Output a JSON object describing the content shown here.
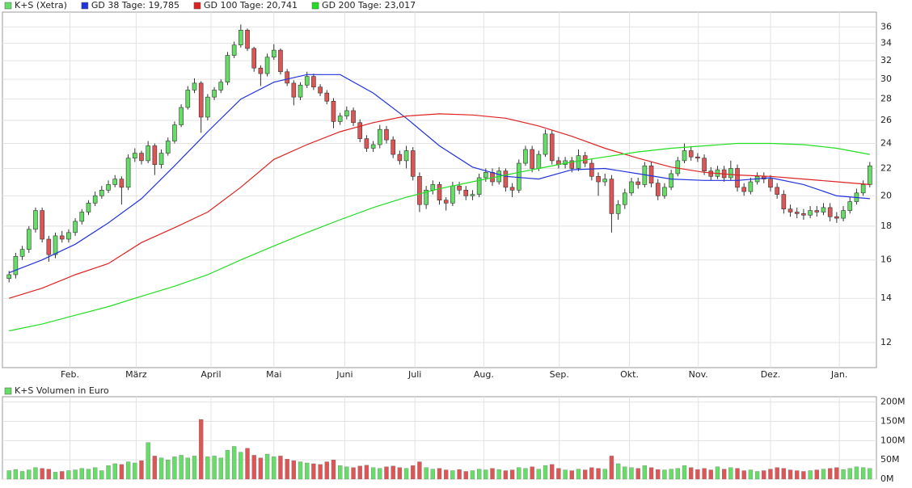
{
  "chart_data": [
    {
      "type": "candlestick",
      "name": "K+S (Xetra)",
      "up_color": "#66dd66",
      "down_color": "#dd5555",
      "log_scale": true,
      "grid": true,
      "xlim": [
        -1,
        131
      ],
      "ylim": [
        11,
        37.9
      ],
      "xticks": [
        {
          "value": 9.2,
          "label": "Feb."
        },
        {
          "value": 19.2,
          "label": "März"
        },
        {
          "value": 30.5,
          "label": "April"
        },
        {
          "value": 40,
          "label": "Mai"
        },
        {
          "value": 50.7,
          "label": "Juni"
        },
        {
          "value": 61.3,
          "label": "Juli"
        },
        {
          "value": 71.7,
          "label": "Aug."
        },
        {
          "value": 83.1,
          "label": "Sep."
        },
        {
          "value": 93.7,
          "label": "Okt."
        },
        {
          "value": 104.1,
          "label": "Nov."
        },
        {
          "value": 115,
          "label": "Dez."
        },
        {
          "value": 125.4,
          "label": "Jan."
        }
      ],
      "yticks": [
        12,
        14,
        16,
        18,
        20,
        22,
        24,
        26,
        28,
        30,
        32,
        34,
        36
      ],
      "ohlc": [
        [
          15.0,
          15.4,
          14.8,
          15.2
        ],
        [
          15.2,
          16.4,
          15.0,
          16.2
        ],
        [
          16.2,
          16.8,
          16.0,
          16.6
        ],
        [
          16.6,
          18.0,
          16.4,
          17.8
        ],
        [
          17.8,
          19.2,
          17.6,
          19.0
        ],
        [
          19.0,
          19.2,
          17.0,
          17.2
        ],
        [
          17.2,
          17.4,
          15.9,
          16.3
        ],
        [
          16.3,
          17.6,
          16.1,
          17.4
        ],
        [
          17.4,
          17.7,
          17.0,
          17.2
        ],
        [
          17.2,
          17.8,
          17.0,
          17.6
        ],
        [
          17.6,
          18.5,
          17.4,
          18.3
        ],
        [
          18.3,
          19.1,
          18.1,
          18.9
        ],
        [
          18.9,
          19.7,
          18.7,
          19.5
        ],
        [
          19.5,
          20.3,
          19.3,
          20.0
        ],
        [
          20.0,
          20.7,
          19.8,
          20.4
        ],
        [
          20.4,
          21.1,
          20.2,
          20.8
        ],
        [
          20.8,
          21.5,
          20.6,
          21.2
        ],
        [
          21.2,
          21.4,
          19.4,
          20.6
        ],
        [
          20.6,
          23.1,
          20.4,
          22.8
        ],
        [
          22.8,
          23.6,
          22.5,
          23.2
        ],
        [
          23.2,
          23.4,
          22.3,
          22.6
        ],
        [
          22.6,
          24.2,
          22.4,
          23.8
        ],
        [
          23.8,
          24.0,
          21.5,
          22.3
        ],
        [
          22.3,
          23.5,
          22.0,
          23.2
        ],
        [
          23.2,
          24.5,
          23.0,
          24.2
        ],
        [
          24.2,
          25.9,
          24.0,
          25.6
        ],
        [
          25.6,
          27.5,
          25.4,
          27.2
        ],
        [
          27.2,
          29.3,
          27.0,
          28.9
        ],
        [
          28.9,
          30.1,
          28.6,
          29.6
        ],
        [
          29.6,
          29.8,
          24.9,
          26.3
        ],
        [
          26.3,
          28.5,
          26.0,
          28.2
        ],
        [
          28.2,
          29.2,
          27.9,
          28.9
        ],
        [
          28.9,
          30.0,
          28.6,
          29.7
        ],
        [
          29.7,
          33.0,
          29.4,
          32.6
        ],
        [
          32.6,
          34.2,
          32.3,
          33.8
        ],
        [
          33.8,
          36.3,
          33.5,
          35.6
        ],
        [
          35.6,
          35.8,
          33.1,
          33.4
        ],
        [
          33.4,
          33.6,
          30.8,
          31.2
        ],
        [
          31.2,
          31.5,
          29.3,
          30.6
        ],
        [
          30.6,
          32.8,
          30.3,
          32.4
        ],
        [
          32.4,
          33.9,
          32.1,
          33.2
        ],
        [
          33.2,
          33.4,
          30.5,
          30.8
        ],
        [
          30.8,
          31.1,
          29.3,
          29.6
        ],
        [
          29.6,
          29.9,
          27.4,
          28.2
        ],
        [
          28.2,
          29.7,
          27.9,
          29.4
        ],
        [
          29.4,
          30.8,
          29.1,
          30.3
        ],
        [
          30.3,
          30.6,
          28.9,
          29.2
        ],
        [
          29.2,
          29.5,
          28.3,
          28.6
        ],
        [
          28.6,
          28.9,
          27.5,
          27.8
        ],
        [
          27.8,
          28.1,
          25.3,
          25.9
        ],
        [
          25.9,
          26.7,
          25.6,
          26.4
        ],
        [
          26.4,
          27.3,
          26.1,
          26.9
        ],
        [
          26.9,
          27.2,
          25.5,
          25.8
        ],
        [
          25.8,
          26.1,
          24.1,
          24.4
        ],
        [
          24.4,
          24.7,
          23.3,
          23.6
        ],
        [
          23.6,
          24.2,
          23.3,
          23.9
        ],
        [
          23.9,
          25.6,
          23.6,
          25.2
        ],
        [
          25.2,
          25.5,
          24.0,
          24.3
        ],
        [
          24.3,
          24.6,
          22.8,
          23.1
        ],
        [
          23.1,
          23.4,
          22.3,
          22.6
        ],
        [
          22.6,
          23.8,
          22.0,
          23.4
        ],
        [
          23.4,
          23.7,
          21.1,
          21.4
        ],
        [
          21.4,
          21.7,
          18.9,
          19.4
        ],
        [
          19.4,
          20.7,
          19.1,
          20.4
        ],
        [
          20.4,
          21.1,
          20.1,
          20.8
        ],
        [
          20.8,
          21.0,
          19.4,
          19.7
        ],
        [
          19.7,
          19.9,
          19.0,
          19.5
        ],
        [
          19.5,
          21.0,
          19.3,
          20.7
        ],
        [
          20.7,
          21.0,
          20.1,
          20.4
        ],
        [
          20.4,
          20.7,
          19.7,
          20.0
        ],
        [
          20.0,
          20.4,
          19.7,
          20.1
        ],
        [
          20.1,
          21.6,
          19.9,
          21.3
        ],
        [
          21.3,
          22.0,
          21.0,
          21.7
        ],
        [
          21.7,
          22.0,
          20.7,
          21.0
        ],
        [
          21.0,
          22.1,
          20.8,
          21.8
        ],
        [
          21.8,
          22.0,
          20.3,
          20.6
        ],
        [
          20.6,
          20.9,
          19.9,
          20.4
        ],
        [
          20.4,
          22.7,
          20.2,
          22.4
        ],
        [
          22.4,
          23.8,
          22.2,
          23.5
        ],
        [
          23.5,
          23.8,
          21.7,
          22.0
        ],
        [
          22.0,
          23.4,
          21.8,
          23.1
        ],
        [
          23.1,
          25.2,
          22.9,
          24.8
        ],
        [
          24.8,
          25.1,
          22.3,
          22.6
        ],
        [
          22.6,
          22.9,
          22.0,
          22.3
        ],
        [
          22.3,
          22.9,
          22.0,
          22.6
        ],
        [
          22.6,
          22.9,
          21.7,
          22.0
        ],
        [
          22.0,
          23.5,
          21.8,
          23.0
        ],
        [
          23.0,
          23.3,
          22.1,
          22.4
        ],
        [
          22.4,
          22.7,
          21.1,
          21.4
        ],
        [
          21.4,
          21.7,
          20.0,
          21.0
        ],
        [
          21.0,
          21.6,
          20.7,
          21.2
        ],
        [
          21.2,
          21.5,
          17.6,
          18.8
        ],
        [
          18.8,
          19.7,
          18.4,
          19.4
        ],
        [
          19.4,
          20.5,
          19.1,
          20.2
        ],
        [
          20.2,
          21.3,
          20.0,
          21.0
        ],
        [
          21.0,
          21.3,
          20.5,
          20.8
        ],
        [
          20.8,
          22.5,
          20.6,
          22.2
        ],
        [
          22.2,
          22.5,
          20.6,
          20.9
        ],
        [
          20.9,
          21.2,
          19.7,
          20.0
        ],
        [
          20.0,
          20.9,
          19.8,
          20.6
        ],
        [
          20.6,
          21.9,
          20.4,
          21.6
        ],
        [
          21.6,
          22.9,
          21.4,
          22.6
        ],
        [
          22.6,
          24.0,
          22.4,
          23.4
        ],
        [
          23.4,
          23.7,
          22.6,
          22.9
        ],
        [
          22.9,
          23.2,
          22.5,
          22.8
        ],
        [
          22.8,
          23.1,
          21.5,
          21.8
        ],
        [
          21.8,
          22.1,
          21.1,
          21.4
        ],
        [
          21.4,
          22.2,
          21.2,
          21.9
        ],
        [
          21.9,
          22.2,
          21.0,
          21.3
        ],
        [
          21.3,
          22.6,
          21.1,
          22.0
        ],
        [
          22.0,
          22.3,
          20.3,
          20.6
        ],
        [
          20.6,
          20.9,
          20.0,
          20.3
        ],
        [
          20.3,
          21.3,
          20.1,
          21.0
        ],
        [
          21.0,
          21.7,
          20.8,
          21.4
        ],
        [
          21.4,
          21.7,
          20.9,
          21.2
        ],
        [
          21.2,
          21.5,
          20.3,
          20.6
        ],
        [
          20.6,
          20.9,
          19.8,
          20.1
        ],
        [
          20.1,
          20.4,
          18.8,
          19.1
        ],
        [
          19.1,
          19.4,
          18.6,
          18.9
        ],
        [
          18.9,
          19.2,
          18.5,
          18.8
        ],
        [
          18.8,
          19.1,
          18.4,
          18.7
        ],
        [
          18.7,
          19.3,
          18.5,
          19.0
        ],
        [
          19.0,
          19.3,
          18.6,
          18.9
        ],
        [
          18.9,
          19.5,
          18.7,
          19.2
        ],
        [
          19.2,
          19.5,
          18.3,
          18.6
        ],
        [
          18.6,
          18.9,
          18.2,
          18.5
        ],
        [
          18.5,
          19.3,
          18.3,
          19.0
        ],
        [
          19.0,
          19.9,
          18.8,
          19.6
        ],
        [
          19.6,
          20.5,
          19.4,
          20.2
        ],
        [
          20.2,
          21.1,
          20.0,
          20.8
        ],
        [
          20.8,
          22.5,
          20.6,
          22.2
        ]
      ],
      "series": [
        {
          "name": "GD 38 Tage: 19,785",
          "color": "#2233dd",
          "x": [
            0,
            5,
            10,
            15,
            20,
            25,
            30,
            35,
            40,
            45,
            50,
            55,
            60,
            65,
            70,
            75,
            80,
            85,
            90,
            95,
            100,
            105,
            110,
            115,
            120,
            125,
            130
          ],
          "values": [
            15.3,
            16.0,
            16.9,
            18.2,
            19.8,
            22.2,
            25.0,
            28.0,
            29.7,
            30.5,
            30.5,
            28.6,
            26.2,
            23.8,
            22.1,
            21.4,
            21.2,
            21.9,
            22.0,
            21.6,
            21.2,
            21.1,
            21.1,
            21.3,
            20.8,
            20.0,
            19.8
          ]
        },
        {
          "name": "GD 100 Tage: 20,741",
          "color": "#dd2222",
          "x": [
            0,
            5,
            10,
            15,
            20,
            25,
            30,
            35,
            40,
            45,
            50,
            55,
            60,
            65,
            70,
            75,
            80,
            85,
            90,
            95,
            100,
            105,
            110,
            115,
            120,
            125,
            130
          ],
          "values": [
            14.0,
            14.5,
            15.2,
            15.8,
            17.0,
            17.9,
            18.9,
            20.6,
            22.7,
            23.9,
            25.0,
            25.8,
            26.4,
            26.6,
            26.5,
            26.2,
            25.5,
            24.6,
            23.6,
            22.8,
            22.1,
            21.7,
            21.5,
            21.4,
            21.2,
            21.0,
            20.8
          ]
        },
        {
          "name": "GD 200 Tage: 23,017",
          "color": "#22dd22",
          "x": [
            0,
            5,
            10,
            15,
            20,
            25,
            30,
            35,
            40,
            45,
            50,
            55,
            60,
            65,
            70,
            75,
            80,
            85,
            90,
            95,
            100,
            105,
            110,
            115,
            120,
            125,
            130
          ],
          "values": [
            12.5,
            12.8,
            13.2,
            13.6,
            14.1,
            14.6,
            15.2,
            16.0,
            16.8,
            17.6,
            18.4,
            19.2,
            19.9,
            20.5,
            21.0,
            21.5,
            22.0,
            22.5,
            22.9,
            23.3,
            23.6,
            23.8,
            24.0,
            24.0,
            23.9,
            23.6,
            23.1
          ]
        }
      ]
    },
    {
      "type": "bar",
      "name": "K+S Volumen in Euro",
      "color": "#66dd66",
      "grid": true,
      "ylim": [
        0,
        214000000.0
      ],
      "yticks": [
        {
          "value": 0,
          "label": "0M"
        },
        {
          "value": 50000000.0,
          "label": "50M"
        },
        {
          "value": 100000000.0,
          "label": "100M"
        },
        {
          "value": 150000000.0,
          "label": "150M"
        },
        {
          "value": 200000000.0,
          "label": "200M"
        }
      ],
      "values": [
        22000000.0,
        25000000.0,
        20000000.0,
        24000000.0,
        30000000.0,
        28000000.0,
        26000000.0,
        18000000.0,
        20000000.0,
        22000000.0,
        24000000.0,
        28000000.0,
        26000000.0,
        30000000.0,
        22000000.0,
        35000000.0,
        40000000.0,
        38000000.0,
        45000000.0,
        42000000.0,
        48000000.0,
        95000000.0,
        60000000.0,
        55000000.0,
        50000000.0,
        58000000.0,
        62000000.0,
        55000000.0,
        60000000.0,
        155000000.0,
        58000000.0,
        60000000.0,
        55000000.0,
        75000000.0,
        85000000.0,
        70000000.0,
        80000000.0,
        62000000.0,
        55000000.0,
        65000000.0,
        58000000.0,
        60000000.0,
        52000000.0,
        48000000.0,
        45000000.0,
        42000000.0,
        40000000.0,
        38000000.0,
        45000000.0,
        50000000.0,
        35000000.0,
        32000000.0,
        30000000.0,
        34000000.0,
        36000000.0,
        30000000.0,
        28000000.0,
        32000000.0,
        34000000.0,
        30000000.0,
        28000000.0,
        35000000.0,
        45000000.0,
        30000000.0,
        26000000.0,
        28000000.0,
        24000000.0,
        22000000.0,
        25000000.0,
        20000000.0,
        22000000.0,
        26000000.0,
        24000000.0,
        28000000.0,
        25000000.0,
        22000000.0,
        24000000.0,
        30000000.0,
        28000000.0,
        32000000.0,
        26000000.0,
        35000000.0,
        38000000.0,
        28000000.0,
        24000000.0,
        22000000.0,
        26000000.0,
        24000000.0,
        30000000.0,
        28000000.0,
        26000000.0,
        60000000.0,
        40000000.0,
        32000000.0,
        30000000.0,
        28000000.0,
        35000000.0,
        30000000.0,
        25000000.0,
        24000000.0,
        26000000.0,
        28000000.0,
        35000000.0,
        30000000.0,
        25000000.0,
        28000000.0,
        24000000.0,
        32000000.0,
        26000000.0,
        30000000.0,
        28000000.0,
        22000000.0,
        24000000.0,
        20000000.0,
        22000000.0,
        26000000.0,
        30000000.0,
        28000000.0,
        24000000.0,
        22000000.0,
        20000000.0,
        22000000.0,
        24000000.0,
        26000000.0,
        28000000.0,
        30000000.0,
        25000000.0,
        28000000.0,
        32000000.0,
        30000000.0,
        28000000.0
      ]
    }
  ]
}
